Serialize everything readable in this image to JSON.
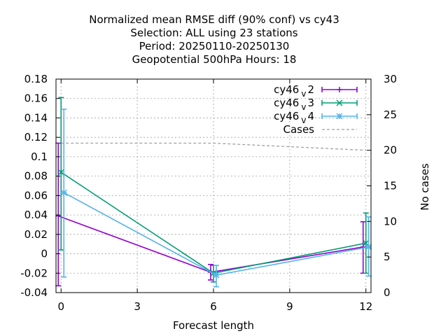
{
  "title_lines": [
    "Normalized mean RMSE diff (90% conf) vs cy43",
    "Selection: ALL using    23 stations",
    "Period: 20250110-20250130",
    "Geopotential 500hPa   Hours:  18"
  ],
  "colors": {
    "cy46_v2": "#9400d3",
    "cy46_v3": "#009e73",
    "cy46_v4": "#56b4e9",
    "cases": "#a0a0a0"
  },
  "chart_data": {
    "type": "line",
    "xlabel": "Forecast length",
    "ylabel": "",
    "y2label": "No cases",
    "xlim": [
      -0.2,
      12.2
    ],
    "ylim": [
      -0.04,
      0.18
    ],
    "y2lim": [
      0,
      30
    ],
    "xticks": [
      0,
      3,
      6,
      9,
      12
    ],
    "yticks": [
      -0.04,
      -0.02,
      0,
      0.02,
      0.04,
      0.06,
      0.08,
      0.1,
      0.12,
      0.14,
      0.16,
      0.18
    ],
    "y2ticks": [
      0,
      5,
      10,
      15,
      20,
      25,
      30
    ],
    "grid": true,
    "legend_position": "top-right",
    "series": [
      {
        "key": "cy46_v2",
        "legend_main": "cy46",
        "legend_sub": "v",
        "legend_suffix": "2",
        "marker": "plus",
        "x": [
          0,
          6,
          12
        ],
        "y": [
          0.039,
          -0.019,
          0.007
        ],
        "err_low": [
          -0.033,
          -0.027,
          -0.02
        ],
        "err_high": [
          0.114,
          -0.011,
          0.033
        ]
      },
      {
        "key": "cy46_v3",
        "legend_main": "cy46",
        "legend_sub": "v",
        "legend_suffix": "3",
        "marker": "cross",
        "x": [
          0,
          6,
          12
        ],
        "y": [
          0.084,
          -0.02,
          0.011
        ],
        "err_low": [
          0.004,
          -0.029,
          -0.02
        ],
        "err_high": [
          0.161,
          -0.012,
          0.042
        ]
      },
      {
        "key": "cy46_v4",
        "legend_main": "cy46",
        "legend_sub": "v",
        "legend_suffix": "4",
        "marker": "star",
        "x": [
          0,
          6,
          12
        ],
        "y": [
          0.063,
          -0.022,
          0.007
        ],
        "err_low": [
          -0.024,
          -0.034,
          -0.023
        ],
        "err_high": [
          0.149,
          -0.012,
          0.038
        ]
      }
    ],
    "cases": {
      "name": "Cases",
      "x": [
        0,
        6,
        12
      ],
      "y": [
        21,
        21,
        20
      ]
    }
  }
}
